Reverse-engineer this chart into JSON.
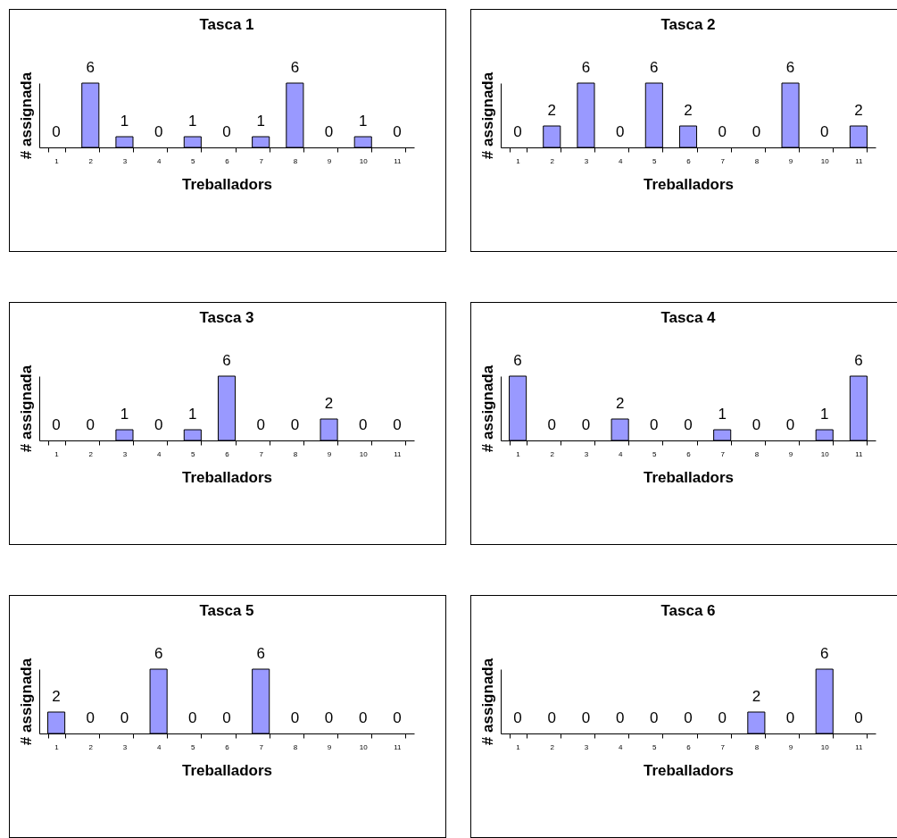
{
  "chart_data": [
    {
      "type": "bar",
      "title": "Tasca 1",
      "xlabel": "Treballadors",
      "ylabel": "# assignada",
      "categories": [
        "1",
        "2",
        "3",
        "4",
        "5",
        "6",
        "7",
        "8",
        "9",
        "10",
        "11"
      ],
      "values": [
        0,
        6,
        1,
        0,
        1,
        0,
        1,
        6,
        0,
        1,
        0
      ],
      "color": "#9999ff",
      "data_labels": true
    },
    {
      "type": "bar",
      "title": "Tasca 2",
      "xlabel": "Treballadors",
      "ylabel": "# assignada",
      "categories": [
        "1",
        "2",
        "3",
        "4",
        "5",
        "6",
        "7",
        "8",
        "9",
        "10",
        "11"
      ],
      "values": [
        0,
        2,
        6,
        0,
        6,
        2,
        0,
        0,
        6,
        0,
        2
      ],
      "color": "#9999ff",
      "data_labels": true
    },
    {
      "type": "bar",
      "title": "Tasca 3",
      "xlabel": "Treballadors",
      "ylabel": "# assignada",
      "categories": [
        "1",
        "2",
        "3",
        "4",
        "5",
        "6",
        "7",
        "8",
        "9",
        "10",
        "11"
      ],
      "values": [
        0,
        0,
        1,
        0,
        1,
        6,
        0,
        0,
        2,
        0,
        0
      ],
      "color": "#9999ff",
      "data_labels": true
    },
    {
      "type": "bar",
      "title": "Tasca 4",
      "xlabel": "Treballadors",
      "ylabel": "# assignada",
      "categories": [
        "1",
        "2",
        "3",
        "4",
        "5",
        "6",
        "7",
        "8",
        "9",
        "10",
        "11"
      ],
      "values": [
        6,
        0,
        0,
        2,
        0,
        0,
        1,
        0,
        0,
        1,
        6
      ],
      "color": "#9999ff",
      "data_labels": true
    },
    {
      "type": "bar",
      "title": "Tasca 5",
      "xlabel": "Treballadors",
      "ylabel": "# assignada",
      "categories": [
        "1",
        "2",
        "3",
        "4",
        "5",
        "6",
        "7",
        "8",
        "9",
        "10",
        "11"
      ],
      "values": [
        2,
        0,
        0,
        6,
        0,
        0,
        6,
        0,
        0,
        0,
        0
      ],
      "color": "#9999ff",
      "data_labels": true
    },
    {
      "type": "bar",
      "title": "Tasca 6",
      "xlabel": "Treballadors",
      "ylabel": "# assignada",
      "categories": [
        "1",
        "2",
        "3",
        "4",
        "5",
        "6",
        "7",
        "8",
        "9",
        "10",
        "11"
      ],
      "values": [
        0,
        0,
        0,
        0,
        0,
        0,
        0,
        2,
        0,
        6,
        0
      ],
      "color": "#9999ff",
      "data_labels": true
    }
  ]
}
